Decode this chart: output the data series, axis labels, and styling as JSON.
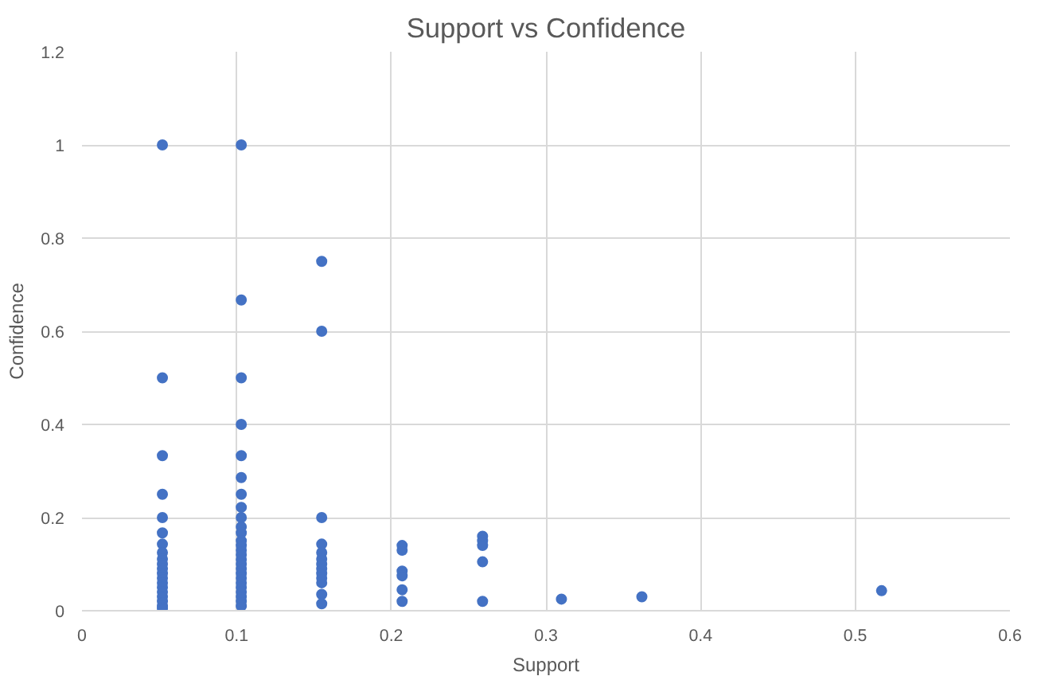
{
  "chart_data": {
    "type": "scatter",
    "title": "Support vs Confidence",
    "xlabel": "Support",
    "ylabel": "Confidence",
    "series": [
      {
        "color": "#4472c4",
        "x": [
          0.052,
          0.052,
          0.052,
          0.052,
          0.052,
          0.052,
          0.052,
          0.052,
          0.052,
          0.052,
          0.052,
          0.052,
          0.052,
          0.052,
          0.052,
          0.052,
          0.052,
          0.052,
          0.052,
          0.052,
          0.103,
          0.103,
          0.103,
          0.103,
          0.103,
          0.103,
          0.103,
          0.103,
          0.103,
          0.103,
          0.103,
          0.103,
          0.103,
          0.103,
          0.103,
          0.103,
          0.103,
          0.103,
          0.103,
          0.103,
          0.103,
          0.103,
          0.103,
          0.103,
          0.103,
          0.103,
          0.155,
          0.155,
          0.155,
          0.155,
          0.155,
          0.155,
          0.155,
          0.155,
          0.155,
          0.155,
          0.155,
          0.155,
          0.155,
          0.207,
          0.207,
          0.207,
          0.207,
          0.207,
          0.207,
          0.259,
          0.259,
          0.259,
          0.259,
          0.259,
          0.31,
          0.362,
          0.517
        ],
        "values": [
          1,
          0.5,
          0.333,
          0.25,
          0.2,
          0.167,
          0.143,
          0.125,
          0.111,
          0.1,
          0.09,
          0.08,
          0.07,
          0.06,
          0.05,
          0.04,
          0.03,
          0.02,
          0.01,
          0.005,
          1,
          0.667,
          0.5,
          0.4,
          0.333,
          0.286,
          0.25,
          0.222,
          0.2,
          0.18,
          0.167,
          0.15,
          0.14,
          0.13,
          0.12,
          0.11,
          0.1,
          0.09,
          0.08,
          0.07,
          0.06,
          0.05,
          0.04,
          0.03,
          0.02,
          0.01,
          0.75,
          0.6,
          0.2,
          0.143,
          0.125,
          0.111,
          0.1,
          0.09,
          0.08,
          0.07,
          0.06,
          0.035,
          0.015,
          0.14,
          0.13,
          0.085,
          0.075,
          0.045,
          0.02,
          0.16,
          0.15,
          0.14,
          0.105,
          0.02,
          0.025,
          0.03,
          0.043
        ]
      }
    ],
    "xlim": [
      0,
      0.6
    ],
    "ylim": [
      0,
      1.2
    ],
    "xticks": [
      0,
      0.1,
      0.2,
      0.3,
      0.4,
      0.5,
      0.6
    ],
    "yticks": [
      0,
      0.2,
      0.4,
      0.6,
      0.8,
      1,
      1.2
    ],
    "grid": true,
    "marker": "circle"
  }
}
